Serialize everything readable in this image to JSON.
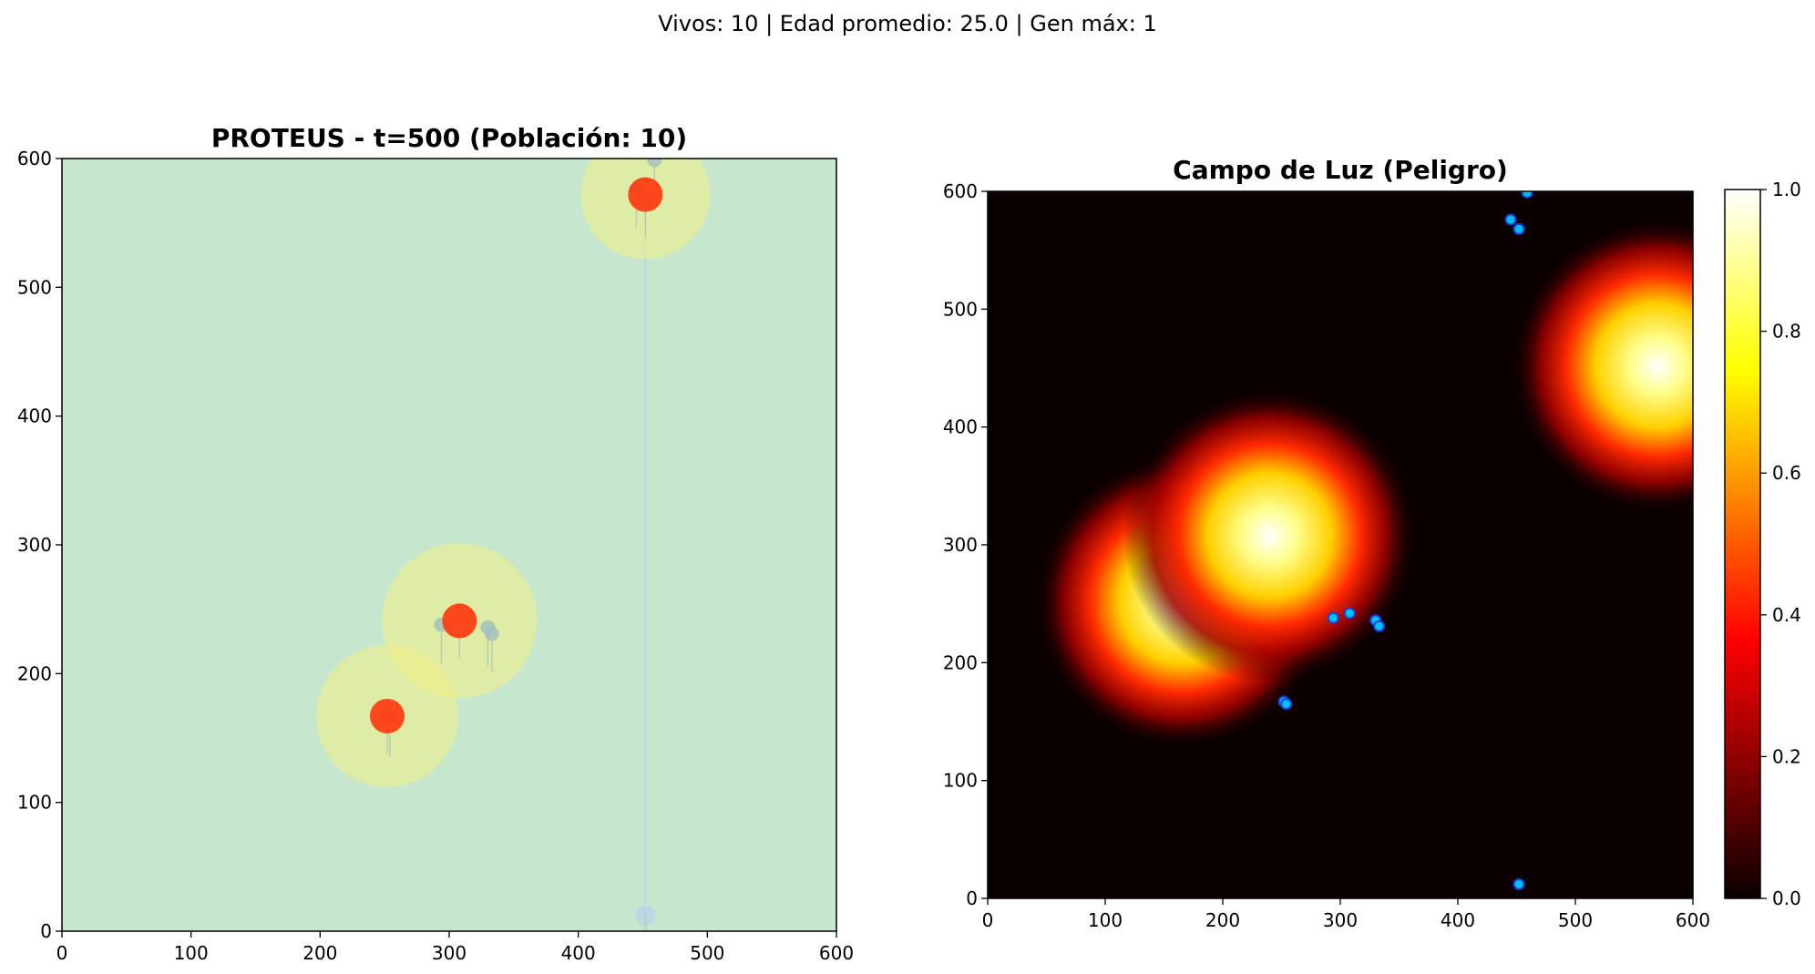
{
  "suptitle": "Vivos: 10 | Edad promedio: 25.0 | Gen máx: 1",
  "chart_data": [
    {
      "type": "scatter",
      "title": "PROTEUS - t=500 (Población: 10)",
      "xlabel": "",
      "ylabel": "",
      "xlim": [
        0,
        600
      ],
      "ylim": [
        0,
        600
      ],
      "x_ticks": [
        0,
        100,
        200,
        300,
        400,
        500,
        600
      ],
      "y_ticks": [
        0,
        100,
        200,
        300,
        400,
        500,
        600
      ],
      "background_color": "#c6e7cd",
      "light_sources": [
        {
          "x": 452,
          "y": 572,
          "radius": 50
        },
        {
          "x": 308,
          "y": 241,
          "radius": 60
        },
        {
          "x": 252,
          "y": 167,
          "radius": 55
        }
      ],
      "organisms": [
        {
          "x": 459,
          "y": 599
        },
        {
          "x": 452,
          "y": 568
        },
        {
          "x": 294,
          "y": 238
        },
        {
          "x": 308,
          "y": 242
        },
        {
          "x": 330,
          "y": 236
        },
        {
          "x": 333,
          "y": 231
        },
        {
          "x": 252,
          "y": 167
        },
        {
          "x": 254,
          "y": 165
        },
        {
          "x": 445,
          "y": 576
        },
        {
          "x": 452,
          "y": 12
        }
      ],
      "colors": {
        "glow": "#f0f08a",
        "light_core": "#ff3a10",
        "organism": "#9fbfbf",
        "organism_bottom": "#b8d4e8"
      }
    },
    {
      "type": "heatmap",
      "title": "Campo de Luz (Peligro)",
      "xlabel": "",
      "ylabel": "",
      "xlim": [
        0,
        600
      ],
      "ylim": [
        0,
        600
      ],
      "x_ticks": [
        0,
        100,
        200,
        300,
        400,
        500,
        600
      ],
      "y_ticks": [
        0,
        100,
        200,
        300,
        400,
        500,
        600
      ],
      "colormap": "hot",
      "colorbar": {
        "min": 0.0,
        "max": 1.0,
        "ticks": [
          "0.0",
          "0.2",
          "0.4",
          "0.6",
          "0.8",
          "1.0"
        ]
      },
      "peaks": [
        {
          "x": 165,
          "y": 252,
          "value": 1.0
        },
        {
          "x": 240,
          "y": 308,
          "value": 1.0
        },
        {
          "x": 570,
          "y": 452,
          "value": 1.0
        }
      ],
      "organisms": [
        {
          "x": 459,
          "y": 599
        },
        {
          "x": 445,
          "y": 576
        },
        {
          "x": 452,
          "y": 568
        },
        {
          "x": 294,
          "y": 238
        },
        {
          "x": 308,
          "y": 242
        },
        {
          "x": 330,
          "y": 236
        },
        {
          "x": 333,
          "y": 231
        },
        {
          "x": 252,
          "y": 167
        },
        {
          "x": 254,
          "y": 165
        },
        {
          "x": 452,
          "y": 12
        }
      ],
      "colors": {
        "organism_fill": "#00bfff",
        "organism_edge": "#1a3fd6"
      }
    }
  ]
}
